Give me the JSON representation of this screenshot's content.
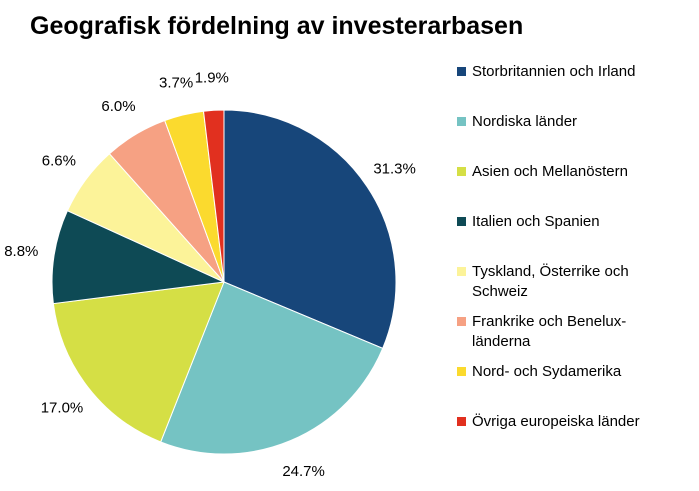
{
  "chart_data": {
    "type": "pie",
    "title": "Geografisk fördelning av investerarbasen",
    "categories": [
      "Storbritannien och Irland",
      "Nordiska länder",
      "Asien och Mellanöstern",
      "Italien och Spanien",
      "Tyskland, Österrike och Schweiz",
      "Frankrike och Benelux-länderna",
      "Nord- och Sydamerika",
      "Övriga europeiska länder"
    ],
    "legend_lines": [
      [
        "Storbritannien och Irland"
      ],
      [
        "Nordiska länder"
      ],
      [
        "Asien och Mellanöstern"
      ],
      [
        "Italien och Spanien"
      ],
      [
        "Tyskland, Österrike och",
        "Schweiz"
      ],
      [
        "Frankrike och Benelux-",
        "länderna"
      ],
      [
        "Nord- och Sydamerika"
      ],
      [
        "Övriga europeiska länder"
      ]
    ],
    "values": [
      31.3,
      24.7,
      17.0,
      8.8,
      6.6,
      6.0,
      3.7,
      1.9
    ],
    "data_labels": [
      "31.3%",
      "24.7%",
      "17.0%",
      "8.8%",
      "6.6%",
      "6.0%",
      "3.7%",
      "1.9%"
    ],
    "colors": [
      "#17467A",
      "#75C3C3",
      "#D5DF45",
      "#0E4A55",
      "#FCF399",
      "#F6A183",
      "#FBDA2E",
      "#E1301F"
    ],
    "legend_position": "right"
  }
}
